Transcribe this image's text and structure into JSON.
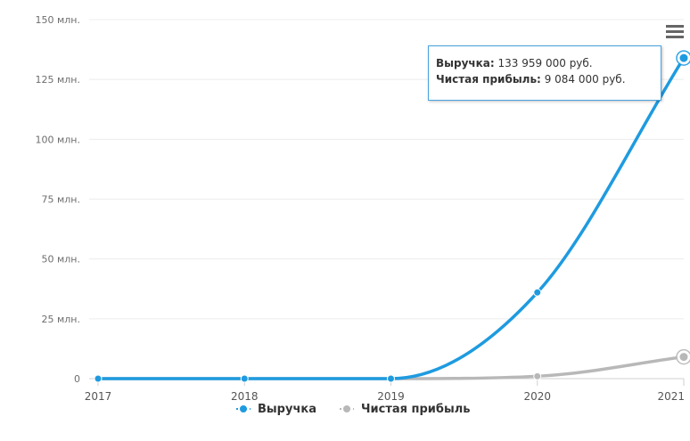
{
  "chart_data": {
    "type": "line",
    "x": [
      "2017",
      "2018",
      "2019",
      "2020",
      "2021"
    ],
    "y_ticks": [
      "0",
      "25 млн.",
      "50 млн.",
      "75 млн.",
      "100 млн.",
      "125 млн.",
      "150 млн."
    ],
    "ylim": [
      0,
      150000000
    ],
    "grid": true,
    "legend_position": "bottom",
    "series": [
      {
        "name": "Выручка",
        "color": "#1e9be0",
        "values": [
          0,
          0,
          0,
          36000000,
          133959000
        ]
      },
      {
        "name": "Чистая прибыль",
        "color": "#b8b8b8",
        "values": [
          0,
          0,
          0,
          1000000,
          9084000
        ]
      }
    ],
    "tooltip": {
      "line1_label": "Выручка:",
      "line1_value": "133 959 000 руб.",
      "line2_label": "Чистая прибыль:",
      "line2_value": "9 084 000 руб."
    }
  },
  "icons": {
    "menu": "hamburger-menu-icon"
  }
}
